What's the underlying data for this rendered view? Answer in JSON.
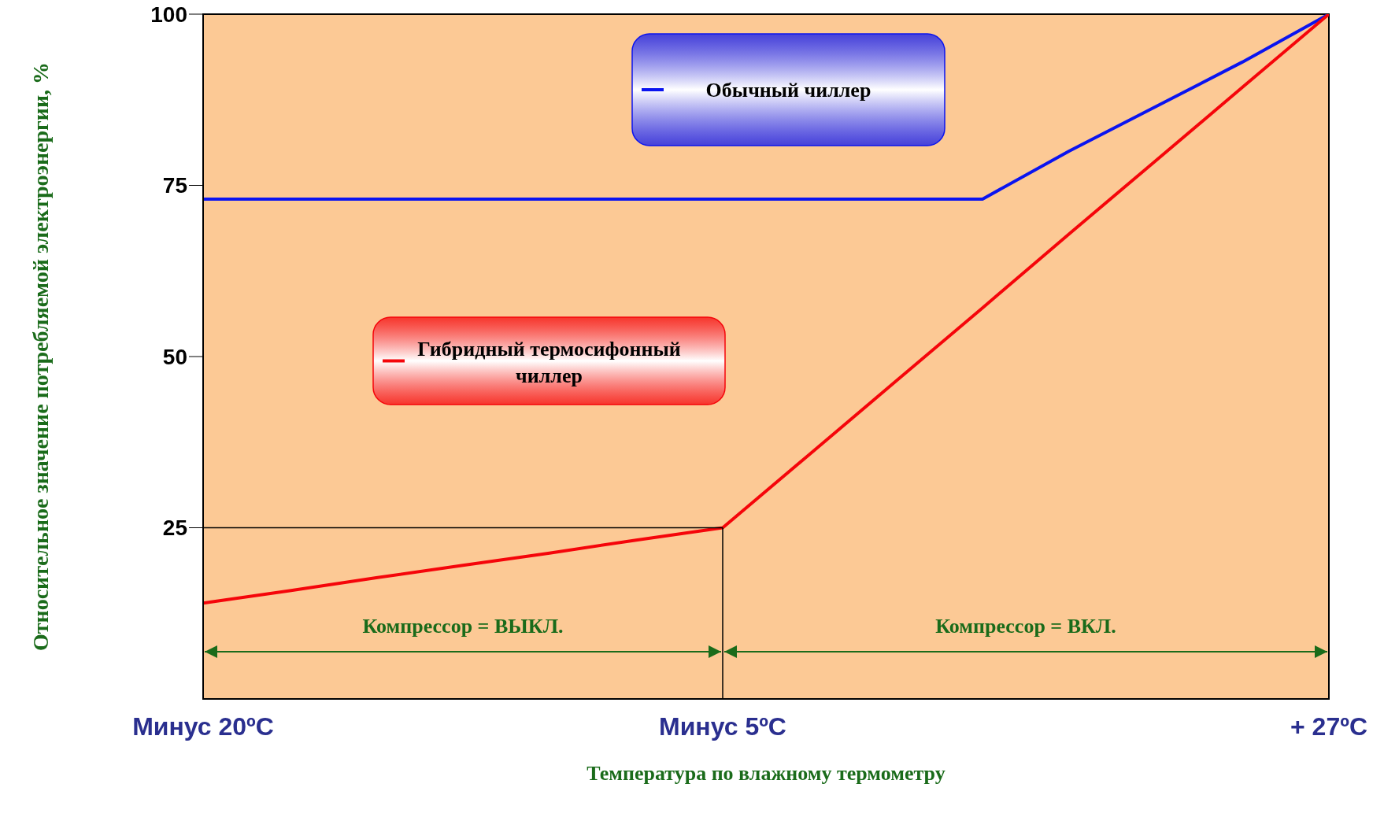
{
  "chart_data": {
    "type": "line",
    "xlabel": "Температура по влажному термометру",
    "ylabel": "Относительное значение потребляемой электроэнергии, %",
    "categories": [
      "Минус 20ºC",
      null,
      null,
      null,
      null,
      null,
      "Минус 5ºC",
      null,
      null,
      null,
      null,
      null,
      null,
      "+ 27ºC"
    ],
    "ylim": [
      0,
      100
    ],
    "yticks": [
      25,
      50,
      75,
      100
    ],
    "series": [
      {
        "name": "Обычный чиллер",
        "color": "#0a14f0",
        "values": [
          73,
          73,
          73,
          73,
          73,
          73,
          73,
          73,
          73,
          73,
          80,
          86.5,
          93,
          100
        ]
      },
      {
        "name": "Гибридный термосифонный чиллер",
        "color": "#f5050a",
        "values": [
          14,
          15.8,
          17.7,
          19.5,
          21.3,
          23.2,
          25,
          35.7,
          46.4,
          57.1,
          67.9,
          78.6,
          89.3,
          100
        ]
      }
    ],
    "ref_lines": [
      {
        "axis": "y",
        "value": 25,
        "color": "#000000"
      },
      {
        "axis": "x",
        "value": "Минус 5ºC",
        "color": "#000000"
      }
    ],
    "legend": "top",
    "annotations": [
      "Компрессор = ВЫКЛ.",
      "Компрессор = ВКЛ."
    ]
  }
}
